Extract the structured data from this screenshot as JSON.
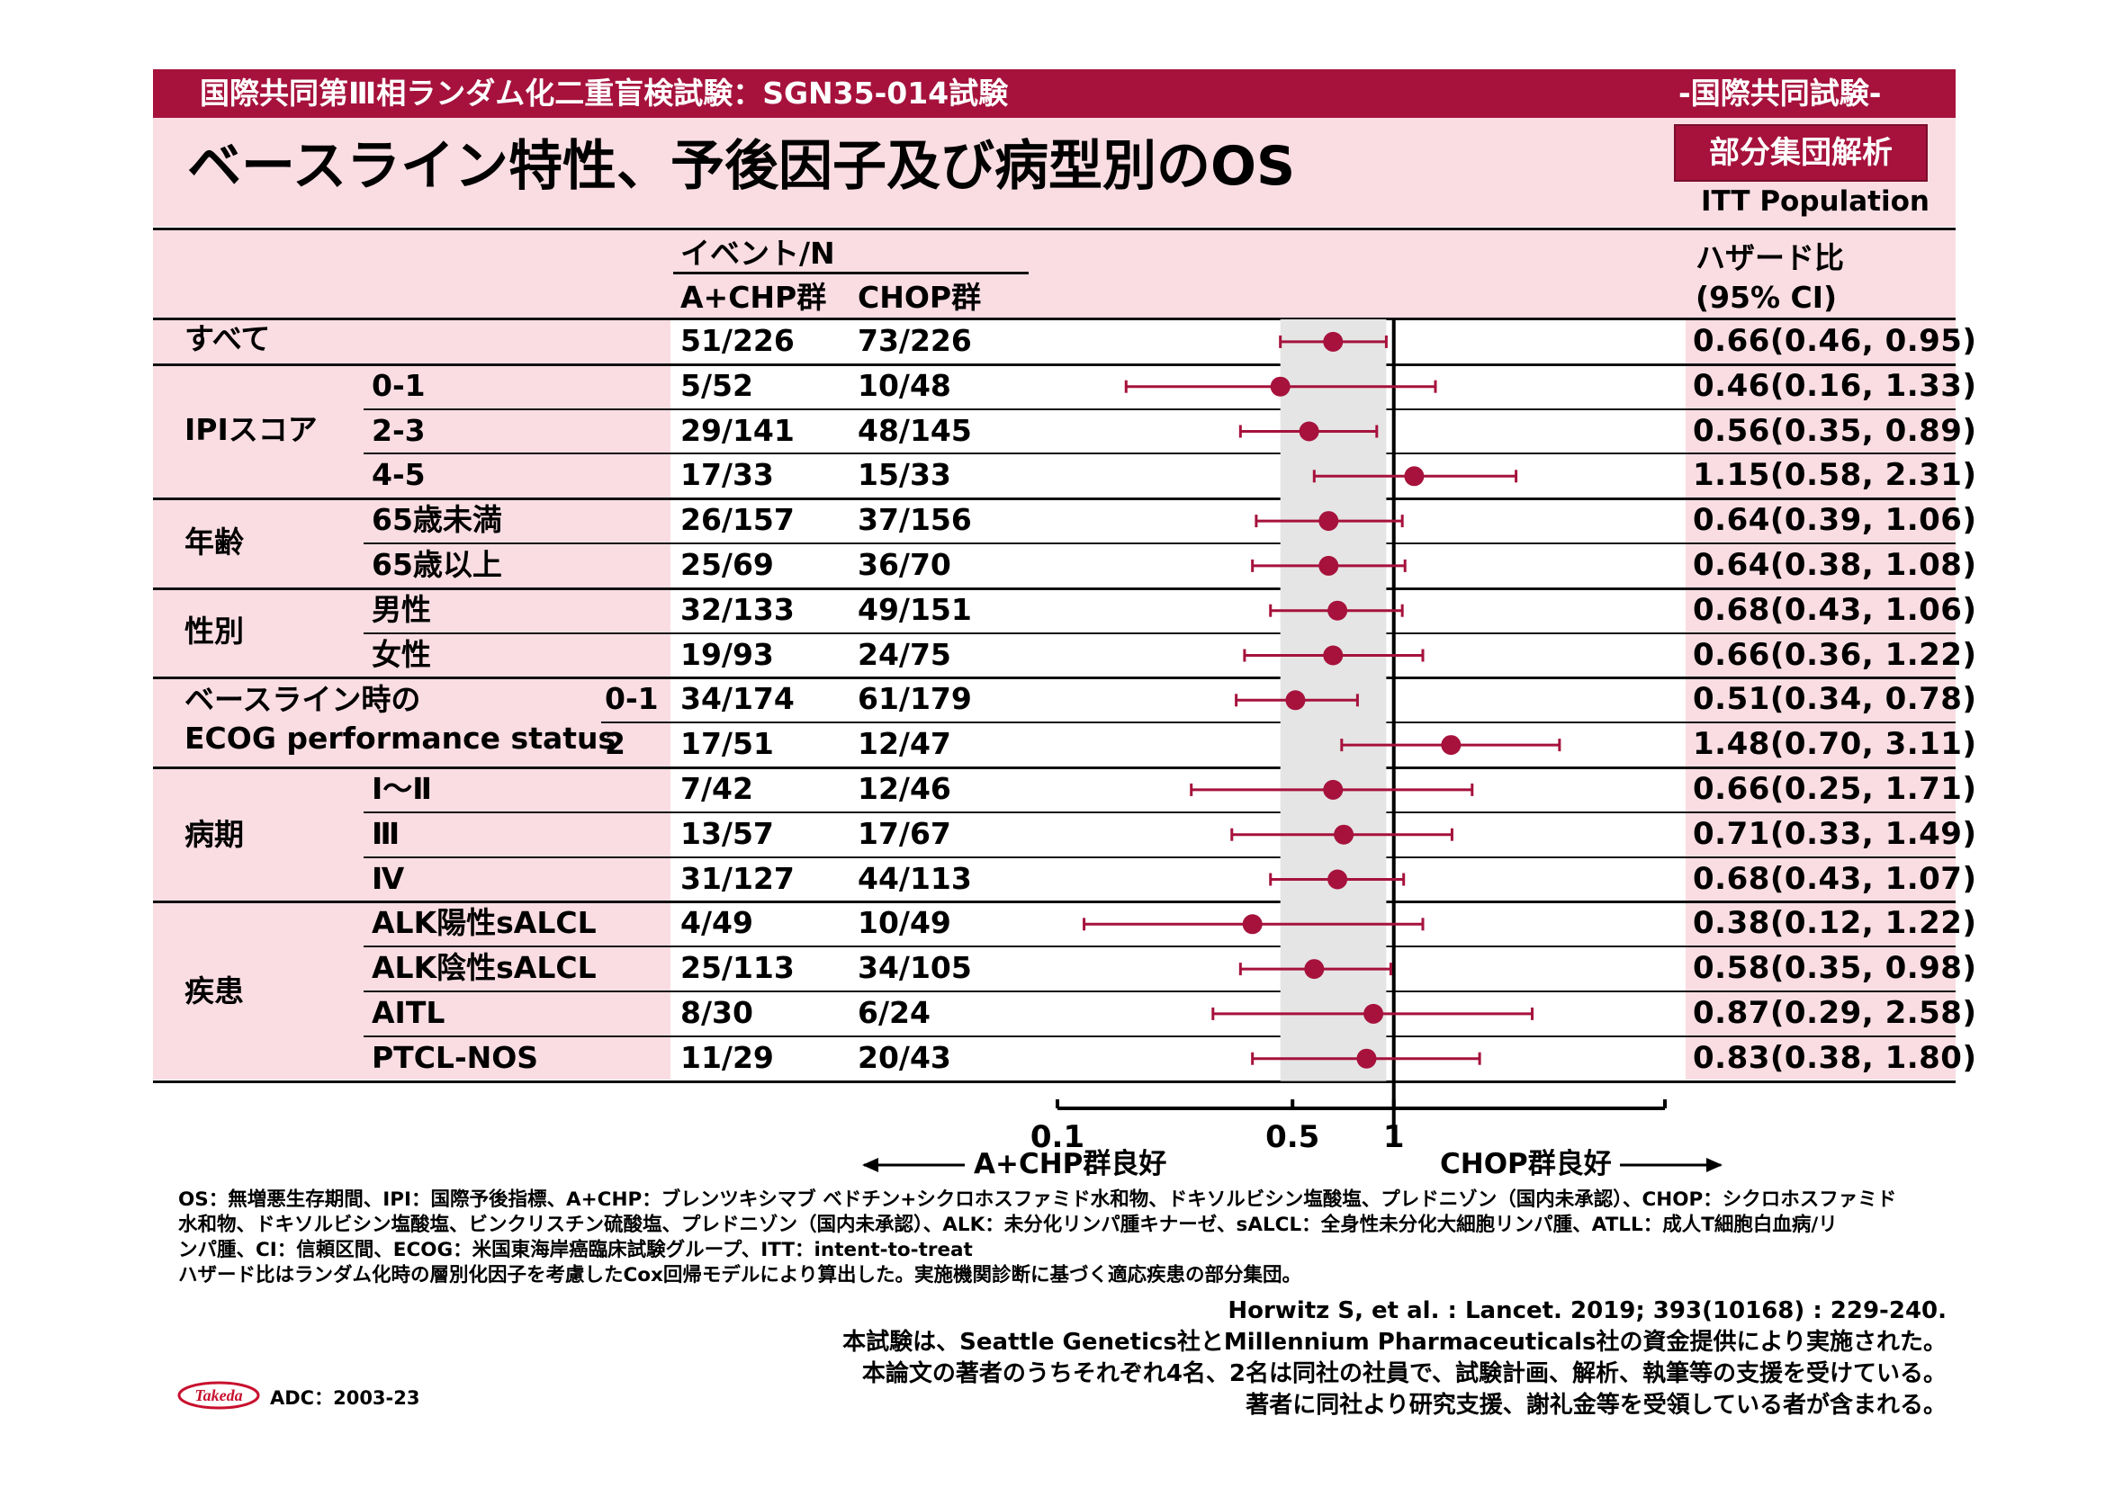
{
  "header": {
    "study_title": "国際共同第Ⅲ相ランダム化二重盲検試験：SGN35-014試験",
    "study_type": "-国際共同試験-",
    "page_title": "ベースライン特性、予後因子及び病型別のOS",
    "subgroup_badge": "部分集団解析",
    "population": "ITT Population"
  },
  "table_header": {
    "events_label": "イベント/N",
    "arm1_label": "A+CHP群",
    "arm2_label": "CHOP群",
    "hr_label": "ハザード比",
    "ci_label": "(95% CI)"
  },
  "groups": [
    {
      "label": "すべて"
    },
    {
      "label": "IPIスコア"
    },
    {
      "label": "年齢"
    },
    {
      "label": "性別"
    },
    {
      "label": "ベースライン時の",
      "label2": "ECOG performance status"
    },
    {
      "label": "病期"
    },
    {
      "label": "疾患"
    }
  ],
  "rows": [
    {
      "subgroup": "",
      "a_chp": "51/226",
      "chop": "73/226",
      "hr_text": "0.66(0.46, 0.95)"
    },
    {
      "subgroup": "0-1",
      "a_chp": "5/52",
      "chop": "10/48",
      "hr_text": "0.46(0.16, 1.33)"
    },
    {
      "subgroup": "2-3",
      "a_chp": "29/141",
      "chop": "48/145",
      "hr_text": "0.56(0.35, 0.89)"
    },
    {
      "subgroup": "4-5",
      "a_chp": "17/33",
      "chop": "15/33",
      "hr_text": "1.15(0.58, 2.31)"
    },
    {
      "subgroup": "65歳未満",
      "a_chp": "26/157",
      "chop": "37/156",
      "hr_text": "0.64(0.39, 1.06)"
    },
    {
      "subgroup": "65歳以上",
      "a_chp": "25/69",
      "chop": "36/70",
      "hr_text": "0.64(0.38, 1.08)"
    },
    {
      "subgroup": "男性",
      "a_chp": "32/133",
      "chop": "49/151",
      "hr_text": "0.68(0.43, 1.06)"
    },
    {
      "subgroup": "女性",
      "a_chp": "19/93",
      "chop": "24/75",
      "hr_text": "0.66(0.36, 1.22)"
    },
    {
      "subgroup": "0-1",
      "a_chp": "34/174",
      "chop": "61/179",
      "hr_text": "0.51(0.34, 0.78)"
    },
    {
      "subgroup": "2",
      "a_chp": "17/51",
      "chop": "12/47",
      "hr_text": "1.48(0.70, 3.11)"
    },
    {
      "subgroup": "Ⅰ～Ⅱ",
      "a_chp": "7/42",
      "chop": "12/46",
      "hr_text": "0.66(0.25, 1.71)"
    },
    {
      "subgroup": "Ⅲ",
      "a_chp": "13/57",
      "chop": "17/67",
      "hr_text": "0.71(0.33, 1.49)"
    },
    {
      "subgroup": "Ⅳ",
      "a_chp": "31/127",
      "chop": "44/113",
      "hr_text": "0.68(0.43, 1.07)"
    },
    {
      "subgroup": "ALK陽性sALCL",
      "a_chp": "4/49",
      "chop": "10/49",
      "hr_text": "0.38(0.12, 1.22)"
    },
    {
      "subgroup": "ALK陰性sALCL",
      "a_chp": "25/113",
      "chop": "34/105",
      "hr_text": "0.58(0.35, 0.98)"
    },
    {
      "subgroup": "AITL",
      "a_chp": "8/30",
      "chop": "6/24",
      "hr_text": "0.87(0.29, 2.58)"
    },
    {
      "subgroup": "PTCL-NOS",
      "a_chp": "11/29",
      "chop": "20/43",
      "hr_text": "0.83(0.38, 1.80)"
    }
  ],
  "chart_data": {
    "type": "forest",
    "x_scale": "log",
    "xlim": [
      0.1,
      6.4
    ],
    "reference_line": 1,
    "shaded_band": [
      0.46,
      0.95
    ],
    "x_tick_labels": [
      "0.1",
      "0.5",
      "1"
    ],
    "x_ticks": [
      0.1,
      0.5,
      1
    ],
    "favors_left": "A+CHP群良好",
    "favors_right": "CHOP群良好",
    "marker_color": "#a6123c",
    "hr": [
      0.66,
      0.46,
      0.56,
      1.15,
      0.64,
      0.64,
      0.68,
      0.66,
      0.51,
      1.48,
      0.66,
      0.71,
      0.68,
      0.38,
      0.58,
      0.87,
      0.83
    ],
    "ci_low": [
      0.46,
      0.16,
      0.35,
      0.58,
      0.39,
      0.38,
      0.43,
      0.36,
      0.34,
      0.7,
      0.25,
      0.33,
      0.43,
      0.12,
      0.35,
      0.29,
      0.38
    ],
    "ci_high": [
      0.95,
      1.33,
      0.89,
      2.31,
      1.06,
      1.08,
      1.06,
      1.22,
      0.78,
      3.11,
      1.71,
      1.49,
      1.07,
      1.22,
      0.98,
      2.58,
      1.8
    ]
  },
  "footnotes": [
    "OS：無増悪生存期間、IPI：国際予後指標、A+CHP：ブレンツキシマブ ベドチン+シクロホスファミド水和物、ドキソルビシン塩酸塩、プレドニゾン（国内未承認）、CHOP：シクロホスファミド",
    "水和物、ドキソルビシン塩酸塩、ビンクリスチン硫酸塩、プレドニゾン（国内未承認）、ALK：未分化リンパ腫キナーゼ、sALCL：全身性未分化大細胞リンパ腫、ATLL：成人T細胞白血病/リ",
    "ンパ腫、CI：信頼区間、ECOG：米国東海岸癌臨床試験グループ、ITT：intent-to-treat",
    "ハザード比はランダム化時の層別化因子を考慮したCox回帰モデルにより算出した。実施機関診断に基づく適応疾患の部分集団。"
  ],
  "references": [
    "Horwitz S, et al. : Lancet. 2019; 393(10168) : 229-240.",
    "本試験は、Seattle Genetics社とMillennium Pharmaceuticals社の資金提供により実施された。",
    "本論文の著者のうちそれぞれ4名、2名は同社の社員で、試験計画、解析、執筆等の支援を受けている。",
    "著者に同社より研究支援、謝礼金等を受領している者が含まれる。"
  ],
  "footer": {
    "logo_text": "Takeda",
    "doc_code": "ADC：2003-23"
  }
}
